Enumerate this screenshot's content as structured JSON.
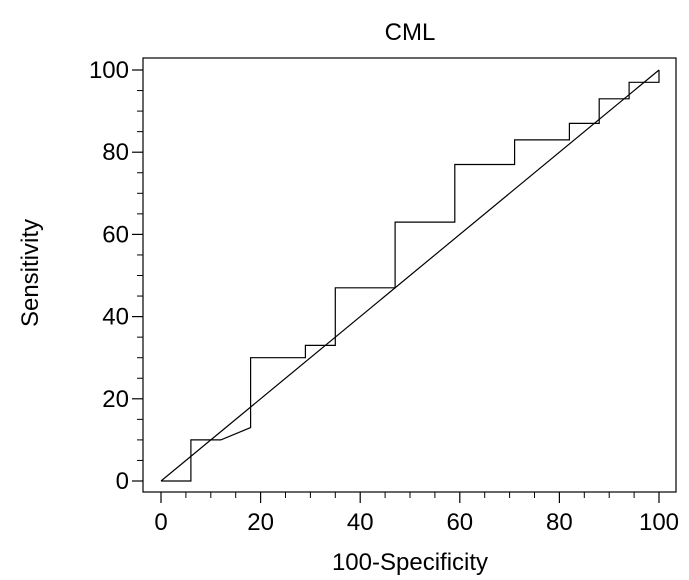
{
  "chart_data": {
    "type": "line",
    "title": "CML",
    "xlabel": "100-Specificity",
    "ylabel": "Sensitivity",
    "xlim": [
      0,
      100
    ],
    "ylim": [
      0,
      100
    ],
    "xticks": [
      "0",
      "20",
      "40",
      "60",
      "80",
      "100"
    ],
    "yticks": [
      "0",
      "20",
      "40",
      "60",
      "80",
      "100"
    ],
    "grid": false,
    "series": [
      {
        "kind": "roc-step",
        "x": [
          0,
          6,
          6,
          12,
          18,
          18,
          29,
          29,
          35,
          35,
          47,
          47,
          59,
          59,
          71,
          71,
          82,
          82,
          88,
          88,
          94,
          94,
          100,
          100
        ],
        "y": [
          0,
          0,
          10,
          10,
          13,
          30,
          30,
          33,
          33,
          47,
          47,
          63,
          63,
          77,
          77,
          83,
          83,
          87,
          87,
          93,
          93,
          97,
          97,
          100
        ]
      },
      {
        "kind": "reference-diagonal",
        "x": [
          0,
          100
        ],
        "y": [
          0,
          100
        ]
      }
    ]
  }
}
